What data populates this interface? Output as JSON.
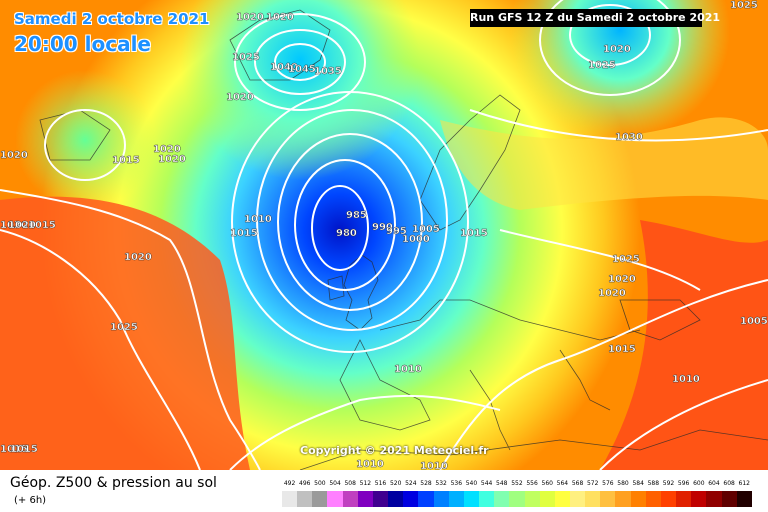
{
  "header": {
    "date_text": "Samedi 2 octobre 2021",
    "time_text": "20:00 locale",
    "run_text": "Run GFS 12 Z du Samedi 2 octobre 2021"
  },
  "copyright": "Copyright © 2021 Meteociel.fr",
  "footer": {
    "title": "Géop. Z500 & pression au sol",
    "subtitle": "(+ 6h)"
  },
  "legend": {
    "values": [
      "492",
      "496",
      "500",
      "504",
      "508",
      "512",
      "516",
      "520",
      "524",
      "528",
      "532",
      "536",
      "540",
      "544",
      "548",
      "552",
      "556",
      "560",
      "564",
      "568",
      "572",
      "576",
      "580",
      "584",
      "588",
      "592",
      "596",
      "600",
      "604",
      "608",
      "612"
    ],
    "colors": [
      "#e8e8e8",
      "#c0c0c0",
      "#9a9a9a",
      "#ff80ff",
      "#c040c0",
      "#8000c0",
      "#400090",
      "#0000a0",
      "#0000e0",
      "#0040ff",
      "#0080ff",
      "#00b0ff",
      "#00e0ff",
      "#40ffe0",
      "#80ffb0",
      "#a0ff80",
      "#c0ff60",
      "#e0ff40",
      "#ffff40",
      "#fff080",
      "#ffe060",
      "#ffc040",
      "#ffa020",
      "#ff8000",
      "#ff6000",
      "#ff4000",
      "#e02000",
      "#c00000",
      "#900000",
      "#600000",
      "#200000"
    ]
  },
  "pressure_labels": [
    "1015",
    "1020",
    "1020",
    "1025",
    "1030",
    "1020",
    "1025",
    "1020",
    "1040",
    "1045",
    "1035",
    "1025",
    "1020",
    "1020",
    "1015",
    "1020",
    "1020",
    "1030",
    "1020",
    "1015",
    "1010",
    "1015",
    "1010",
    "1015",
    "1020",
    "1015",
    "1010",
    "985",
    "980",
    "990",
    "995",
    "1000",
    "1005",
    "1015",
    "1025",
    "1020",
    "1020",
    "1025",
    "1005",
    "1015",
    "1010",
    "1010",
    "1015",
    "1010",
    "1010",
    "1010"
  ]
}
